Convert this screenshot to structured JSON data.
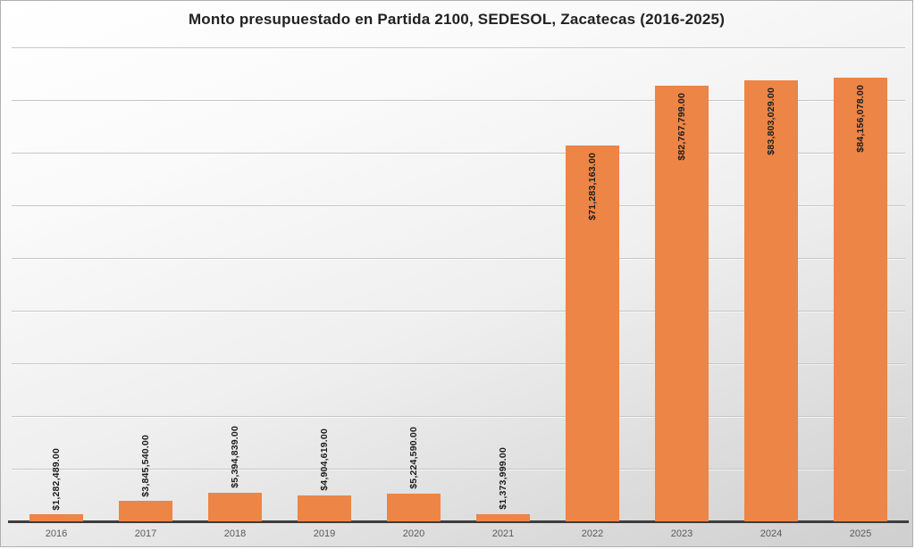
{
  "title": "Monto presupuestado en Partida 2100, SEDESOL, Zacatecas (2016-2025)",
  "chart_data": {
    "type": "bar",
    "title": "Monto presupuestado en Partida 2100, SEDESOL, Zacatecas (2016-2025)",
    "categories": [
      "2016",
      "2017",
      "2018",
      "2019",
      "2020",
      "2021",
      "2022",
      "2023",
      "2024",
      "2025"
    ],
    "values": [
      1282489,
      3845540,
      5394839,
      4904619,
      5224590,
      1373999,
      71283163,
      82767799,
      83803029,
      84156078
    ],
    "data_labels": [
      "$1,282,489.00",
      "$3,845,540.00",
      "$5,394,839.00",
      "$4,904,619.00",
      "$5,224,590.00",
      "$1,373,999.00",
      "$71,283,163.00",
      "$82,767,799.00",
      "$83,803,029.00",
      "$84,156,078.00"
    ],
    "xlabel": "",
    "ylabel": "",
    "ylim": [
      0,
      90000000
    ],
    "gridline_interval": 10000000,
    "grid": true,
    "legend": false,
    "y_axis_labels_visible": false,
    "data_label_rotation": "vertical-bottom-up",
    "colors": {
      "bar_fill": "#EC8546",
      "data_label": "#1c1c1c",
      "gridline": "#c6c6c6",
      "axis_line": "#3d3d3d",
      "tick_label": "#5a5a5a",
      "title": "#222222"
    }
  }
}
